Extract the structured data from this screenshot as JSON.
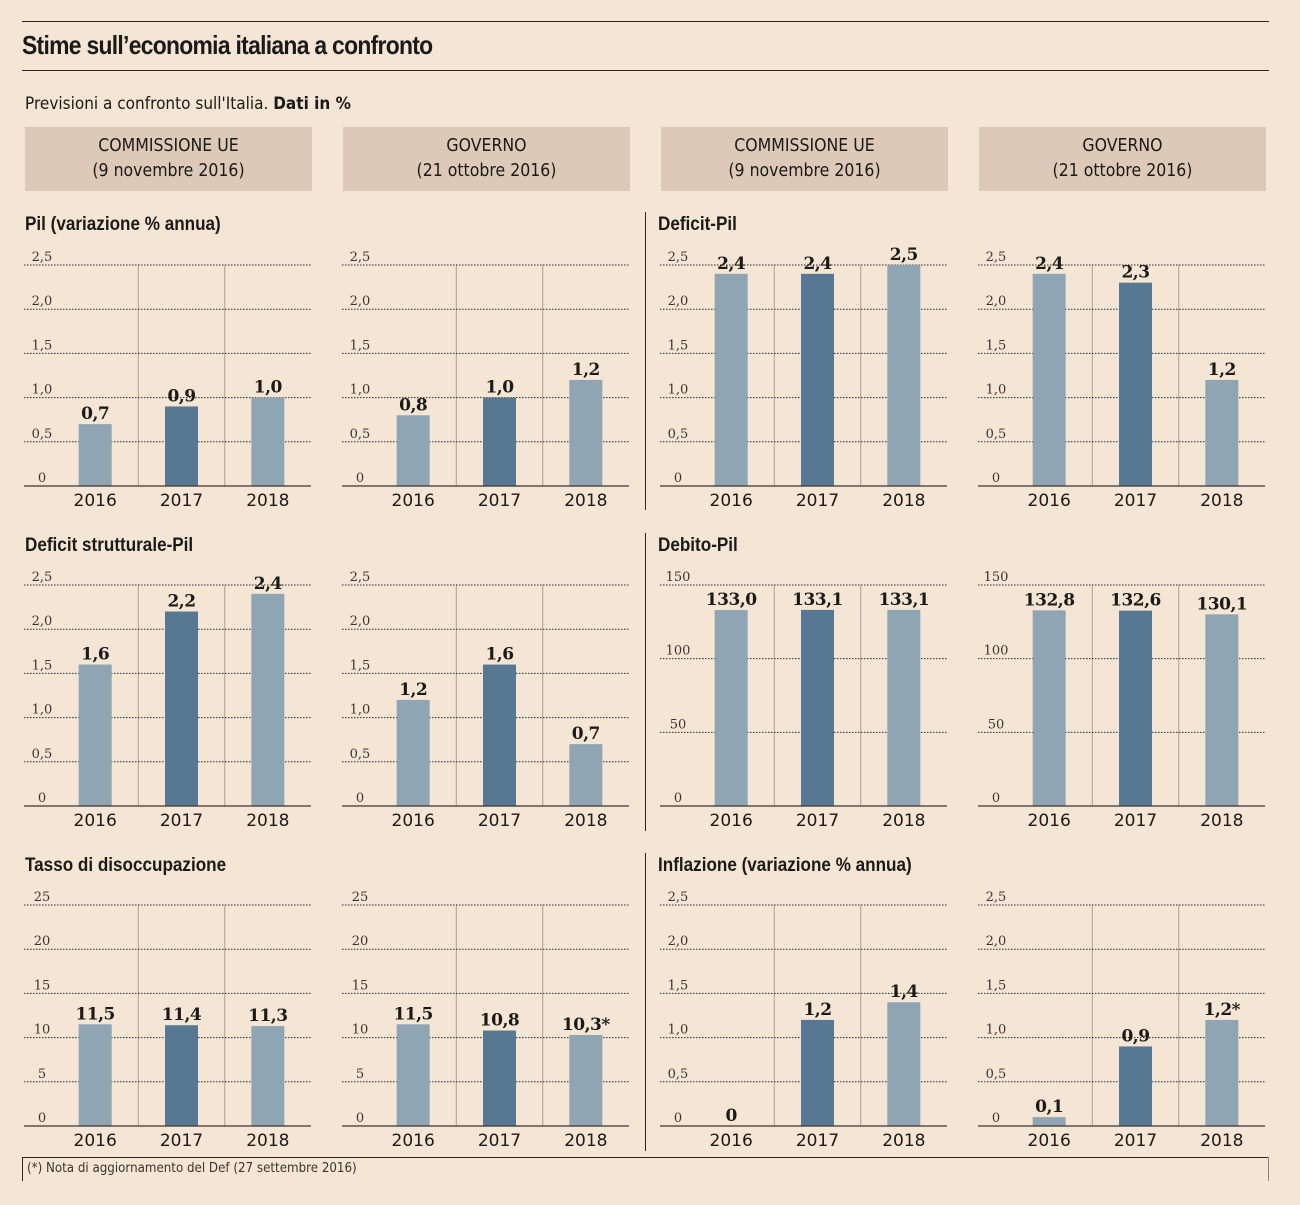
{
  "title": "Stime sull’economia italiana a confronto",
  "subtitle": {
    "text": "Previsioni a confronto sull'Italia.",
    "bold": "Dati in %"
  },
  "column_headers": [
    {
      "source": "COMMISSIONE UE",
      "date": "(9 novembre 2016)"
    },
    {
      "source": "GOVERNO",
      "date": "(21 ottobre 2016)"
    },
    {
      "source": "COMMISSIONE UE",
      "date": "(9 novembre 2016)"
    },
    {
      "source": "GOVERNO",
      "date": "(21 ottobre 2016)"
    }
  ],
  "sections": [
    {
      "title": "Pil (variazione % annua)"
    },
    {
      "title": "Deficit-Pil"
    },
    {
      "title": "Deficit strutturale-Pil"
    },
    {
      "title": "Debito-Pil"
    },
    {
      "title": "Tasso di disoccupazione"
    },
    {
      "title": "Inflazione (variazione % annua)"
    }
  ],
  "colors": {
    "bar_light": "#8fa5b3",
    "bar_dark": "#567892",
    "background": "#f4e5d5",
    "header_box": "#dcc9b8"
  },
  "footnote": "(*) Nota di aggiornamento del Def (27 settembre 2016)",
  "chart_data": [
    {
      "type": "bar",
      "title": "Pil (variazione % annua)",
      "source": "COMMISSIONE UE (9 novembre 2016)",
      "categories": [
        "2016",
        "2017",
        "2018"
      ],
      "values": [
        0.7,
        0.9,
        1.0
      ],
      "labels": [
        "0,7",
        "0,9",
        "1,0"
      ],
      "yticks": [
        "0",
        "0,5",
        "1,0",
        "1,5",
        "2,0",
        "2,5"
      ],
      "ytick_values": [
        0,
        0.5,
        1,
        1.5,
        2,
        2.5
      ],
      "ylim": [
        0,
        2.5
      ],
      "grid": true
    },
    {
      "type": "bar",
      "title": "Pil (variazione % annua)",
      "source": "GOVERNO (21 ottobre 2016)",
      "categories": [
        "2016",
        "2017",
        "2018"
      ],
      "values": [
        0.8,
        1.0,
        1.2
      ],
      "labels": [
        "0,8",
        "1,0",
        "1,2"
      ],
      "yticks": [
        "0",
        "0,5",
        "1,0",
        "1,5",
        "2,0",
        "2,5"
      ],
      "ytick_values": [
        0,
        0.5,
        1,
        1.5,
        2,
        2.5
      ],
      "ylim": [
        0,
        2.5
      ],
      "grid": true
    },
    {
      "type": "bar",
      "title": "Deficit-Pil",
      "source": "COMMISSIONE UE (9 novembre 2016)",
      "categories": [
        "2016",
        "2017",
        "2018"
      ],
      "values": [
        2.4,
        2.4,
        2.5
      ],
      "labels": [
        "2,4",
        "2,4",
        "2,5"
      ],
      "yticks": [
        "0",
        "0,5",
        "1,0",
        "1,5",
        "2,0",
        "2,5"
      ],
      "ytick_values": [
        0,
        0.5,
        1,
        1.5,
        2,
        2.5
      ],
      "ylim": [
        0,
        2.5
      ],
      "grid": true
    },
    {
      "type": "bar",
      "title": "Deficit-Pil",
      "source": "GOVERNO (21 ottobre 2016)",
      "categories": [
        "2016",
        "2017",
        "2018"
      ],
      "values": [
        2.4,
        2.3,
        1.2
      ],
      "labels": [
        "2,4",
        "2,3",
        "1,2"
      ],
      "yticks": [
        "0",
        "0,5",
        "1,0",
        "1,5",
        "2,0",
        "2,5"
      ],
      "ytick_values": [
        0,
        0.5,
        1,
        1.5,
        2,
        2.5
      ],
      "ylim": [
        0,
        2.5
      ],
      "grid": true
    },
    {
      "type": "bar",
      "title": "Deficit strutturale-Pil",
      "source": "COMMISSIONE UE (9 novembre 2016)",
      "categories": [
        "2016",
        "2017",
        "2018"
      ],
      "values": [
        1.6,
        2.2,
        2.4
      ],
      "labels": [
        "1,6",
        "2,2",
        "2,4"
      ],
      "yticks": [
        "0",
        "0,5",
        "1,0",
        "1,5",
        "2,0",
        "2,5"
      ],
      "ytick_values": [
        0,
        0.5,
        1,
        1.5,
        2,
        2.5
      ],
      "ylim": [
        0,
        2.5
      ],
      "grid": true
    },
    {
      "type": "bar",
      "title": "Deficit strutturale-Pil",
      "source": "GOVERNO (21 ottobre 2016)",
      "categories": [
        "2016",
        "2017",
        "2018"
      ],
      "values": [
        1.2,
        1.6,
        0.7
      ],
      "labels": [
        "1,2",
        "1,6",
        "0,7"
      ],
      "yticks": [
        "0",
        "0,5",
        "1,0",
        "1,5",
        "2,0",
        "2,5"
      ],
      "ytick_values": [
        0,
        0.5,
        1,
        1.5,
        2,
        2.5
      ],
      "ylim": [
        0,
        2.5
      ],
      "grid": true
    },
    {
      "type": "bar",
      "title": "Debito-Pil",
      "source": "COMMISSIONE UE (9 novembre 2016)",
      "categories": [
        "2016",
        "2017",
        "2018"
      ],
      "values": [
        133.0,
        133.1,
        133.1
      ],
      "labels": [
        "133,0",
        "133,1",
        "133,1"
      ],
      "yticks": [
        "0",
        "50",
        "100",
        "150"
      ],
      "ytick_values": [
        0,
        50,
        100,
        150
      ],
      "ylim": [
        0,
        150
      ],
      "grid": true
    },
    {
      "type": "bar",
      "title": "Debito-Pil",
      "source": "GOVERNO (21 ottobre 2016)",
      "categories": [
        "2016",
        "2017",
        "2018"
      ],
      "values": [
        132.8,
        132.6,
        130.1
      ],
      "labels": [
        "132,8",
        "132,6",
        "130,1"
      ],
      "yticks": [
        "0",
        "50",
        "100",
        "150"
      ],
      "ytick_values": [
        0,
        50,
        100,
        150
      ],
      "ylim": [
        0,
        150
      ],
      "grid": true
    },
    {
      "type": "bar",
      "title": "Tasso di disoccupazione",
      "source": "COMMISSIONE UE (9 novembre 2016)",
      "categories": [
        "2016",
        "2017",
        "2018"
      ],
      "values": [
        11.5,
        11.4,
        11.3
      ],
      "labels": [
        "11,5",
        "11,4",
        "11,3"
      ],
      "yticks": [
        "0",
        "5",
        "10",
        "15",
        "20",
        "25"
      ],
      "ytick_values": [
        0,
        5,
        10,
        15,
        20,
        25
      ],
      "ylim": [
        0,
        25
      ],
      "grid": true
    },
    {
      "type": "bar",
      "title": "Tasso di disoccupazione",
      "source": "GOVERNO (21 ottobre 2016)",
      "categories": [
        "2016",
        "2017",
        "2018"
      ],
      "values": [
        11.5,
        10.8,
        10.3
      ],
      "labels": [
        "11,5",
        "10,8",
        "10,3*"
      ],
      "yticks": [
        "0",
        "5",
        "10",
        "15",
        "20",
        "25"
      ],
      "ytick_values": [
        0,
        5,
        10,
        15,
        20,
        25
      ],
      "ylim": [
        0,
        25
      ],
      "grid": true
    },
    {
      "type": "bar",
      "title": "Inflazione (variazione % annua)",
      "source": "COMMISSIONE UE (9 novembre 2016)",
      "categories": [
        "2016",
        "2017",
        "2018"
      ],
      "values": [
        0,
        1.2,
        1.4
      ],
      "labels": [
        "0",
        "1,2",
        "1,4"
      ],
      "yticks": [
        "0",
        "0,5",
        "1,0",
        "1,5",
        "2,0",
        "2,5"
      ],
      "ytick_values": [
        0,
        0.5,
        1,
        1.5,
        2,
        2.5
      ],
      "ylim": [
        0,
        2.5
      ],
      "grid": true
    },
    {
      "type": "bar",
      "title": "Inflazione (variazione % annua)",
      "source": "GOVERNO (21 ottobre 2016)",
      "categories": [
        "2016",
        "2017",
        "2018"
      ],
      "values": [
        0.1,
        0.9,
        1.2
      ],
      "labels": [
        "0,1",
        "0,9",
        "1,2*"
      ],
      "yticks": [
        "0",
        "0,5",
        "1,0",
        "1,5",
        "2,0",
        "2,5"
      ],
      "ytick_values": [
        0,
        0.5,
        1,
        1.5,
        2,
        2.5
      ],
      "ylim": [
        0,
        2.5
      ],
      "grid": true
    }
  ]
}
